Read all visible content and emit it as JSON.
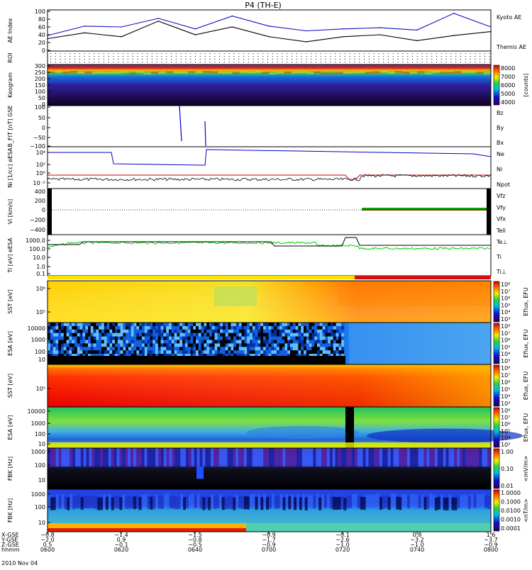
{
  "title": "P4 (TH-E)",
  "date_label": "2010 Nov 04",
  "colors": {
    "kyoto_ae": "#1010c0",
    "themis_ae": "#000000",
    "bz": "#cc0000",
    "by": "#00aa00",
    "bx": "#0000cc",
    "ni": "#000000",
    "npot": "#0000cc",
    "tell": "#000000"
  },
  "panels": [
    {
      "id": "ae",
      "ylabel": "AE Index",
      "ticks": [
        "100",
        "80",
        "60",
        "40",
        "20",
        "0"
      ],
      "legend": [
        {
          "text": "Kyoto AE",
          "color": "#1010c0"
        },
        {
          "text": "Themis AE",
          "color": "#000000"
        }
      ]
    },
    {
      "id": "roi",
      "ylabel": "ROI",
      "ticks": [],
      "legend": []
    },
    {
      "id": "keogram",
      "ylabel": "Keogram",
      "ticks": [
        "300",
        "250",
        "200",
        "150",
        "100",
        "50",
        "0"
      ],
      "legend": [],
      "colorbar": {
        "ticks": [
          "8000",
          "7000",
          "6000",
          "5000",
          "4000"
        ],
        "unit": "[counts]",
        "scheme": "rainbow"
      }
    },
    {
      "id": "bfit",
      "ylabel": "B_FIT [nT] GSE",
      "ticks": [
        "100",
        "50",
        "0",
        "−50",
        "−100"
      ],
      "legend": [
        {
          "text": "Bz",
          "color": "#cc0000"
        },
        {
          "text": "By",
          "color": "#00aa00"
        },
        {
          "text": "Bx",
          "color": "#0000cc"
        }
      ]
    },
    {
      "id": "ni",
      "ylabel": "Ni [1/cc] eESA",
      "ticks": [
        "10⁴",
        "10²",
        "10⁰",
        "10⁻²"
      ],
      "legend": [
        {
          "text": "Ne",
          "color": "#cc0000"
        },
        {
          "text": "Ni",
          "color": "#000000"
        },
        {
          "text": "Npot",
          "color": "#0000cc"
        }
      ]
    },
    {
      "id": "vi",
      "ylabel": "Vi [km/s]",
      "ticks": [
        "400",
        "200",
        "0",
        "−200",
        "−400"
      ],
      "legend": [
        {
          "text": "Vfz",
          "color": "#cc0000"
        },
        {
          "text": "Vfy",
          "color": "#00aa00"
        },
        {
          "text": "Vfx",
          "color": "#0000cc"
        },
        {
          "text": "Tell",
          "color": "#000000"
        }
      ]
    },
    {
      "id": "ti",
      "ylabel": "Ti [eV] eESA",
      "ticks": [
        "1000.0",
        "100.0",
        "10.0",
        "1.0",
        "0.1"
      ],
      "legend": [
        {
          "text": "Te⊥",
          "color": "#cc0000"
        },
        {
          "text": "Ti",
          "color": "#00aa00"
        },
        {
          "text": "Ti⊥",
          "color": "#0000cc"
        }
      ]
    },
    {
      "id": "sst_e",
      "ylabel": "SST [eV]",
      "ticks": [
        "10⁶",
        "10⁵"
      ],
      "legend": [],
      "colorbar": {
        "ticks": [
          "10⁸",
          "10⁷",
          "10⁶",
          "10⁵",
          "10⁴",
          "10³"
        ],
        "unit": "Eflux, EFU",
        "scheme": "rainbow"
      }
    },
    {
      "id": "esa_e",
      "ylabel": "ESA [eV]",
      "ticks": [
        "10000",
        "1000",
        "100",
        "10"
      ],
      "legend": [],
      "colorbar": {
        "ticks": [
          "10⁸",
          "10⁷",
          "10⁶",
          "10⁵",
          "10⁴",
          "10³"
        ],
        "unit": "Eflux, EFU",
        "scheme": "rainbow"
      }
    },
    {
      "id": "sst_i",
      "ylabel": "SST [eV]",
      "ticks": [
        "10⁵"
      ],
      "legend": [],
      "colorbar": {
        "ticks": [
          "10⁸",
          "10⁷",
          "10⁶",
          "10⁵",
          "10⁴",
          "10³"
        ],
        "unit": "Eflux, EFU",
        "scheme": "rainbow"
      }
    },
    {
      "id": "esa_i",
      "ylabel": "ESA [eV]",
      "ticks": [
        "10000",
        "1000",
        "100",
        "10"
      ],
      "legend": [],
      "colorbar": {
        "ticks": [
          "10⁸",
          "10⁷",
          "10⁶",
          "10⁵",
          "10⁴",
          "10³"
        ],
        "unit": "Eflux, EFU",
        "scheme": "rainbow"
      }
    },
    {
      "id": "fbk_e",
      "ylabel": "FBK [Hz]",
      "ticks": [
        "1000",
        "100",
        "10"
      ],
      "legend": [],
      "colorbar": {
        "ticks": [
          "1.00",
          "0.10",
          "0.01"
        ],
        "unit": "<mV/m>",
        "scheme": "rainbow"
      }
    },
    {
      "id": "fbk_b",
      "ylabel": "FBK [Hz]",
      "ticks": [
        "1000",
        "100",
        "10"
      ],
      "legend": [],
      "colorbar": {
        "ticks": [
          "1.0000",
          "0.1000",
          "0.0100",
          "0.0010",
          "0.0001"
        ],
        "unit": "<nT/m>",
        "scheme": "rainbow"
      }
    }
  ],
  "xaxis": {
    "row_labels": [
      "X-GSE",
      "Y-GSE",
      "Z-GSE",
      "hhmm"
    ],
    "columns": [
      {
        "x": "−0.8",
        "y": "−2.0",
        "z": "0.5",
        "t": "0600"
      },
      {
        "x": "−1.4",
        "y": "0.9",
        "z": "−0.1",
        "t": "0620"
      },
      {
        "x": "−1.5",
        "y": "−0.8",
        "z": "−0.5",
        "t": "0640"
      },
      {
        "x": "−0.9",
        "y": "−1.7",
        "z": "−0.9",
        "t": "0700"
      },
      {
        "x": "−0.1",
        "y": "−2.6",
        "z": "−1.0",
        "t": "0720"
      },
      {
        "x": "0.8",
        "y": "−3.2",
        "z": "−1.0",
        "t": "0740"
      },
      {
        "x": "1.6",
        "y": "−3.7",
        "z": "−0.9",
        "t": "0800"
      }
    ]
  },
  "chart_data": {
    "type": "line",
    "title": "P4 (TH-E)",
    "x_unit": "hhmm",
    "x_range": [
      "0600",
      "0800"
    ],
    "series": [
      {
        "name": "Kyoto AE",
        "x_min": [
          0,
          10,
          20,
          30,
          40,
          50,
          60,
          70,
          80,
          90,
          100,
          110,
          120
        ],
        "values": [
          38,
          62,
          60,
          82,
          55,
          88,
          62,
          50,
          55,
          58,
          52,
          95,
          60
        ]
      },
      {
        "name": "Themis AE",
        "x_min": [
          0,
          10,
          20,
          30,
          40,
          50,
          60,
          70,
          80,
          90,
          100,
          110,
          120
        ],
        "values": [
          30,
          45,
          35,
          75,
          40,
          60,
          35,
          22,
          35,
          40,
          25,
          38,
          48
        ]
      }
    ],
    "ylim": [
      0,
      100
    ]
  }
}
